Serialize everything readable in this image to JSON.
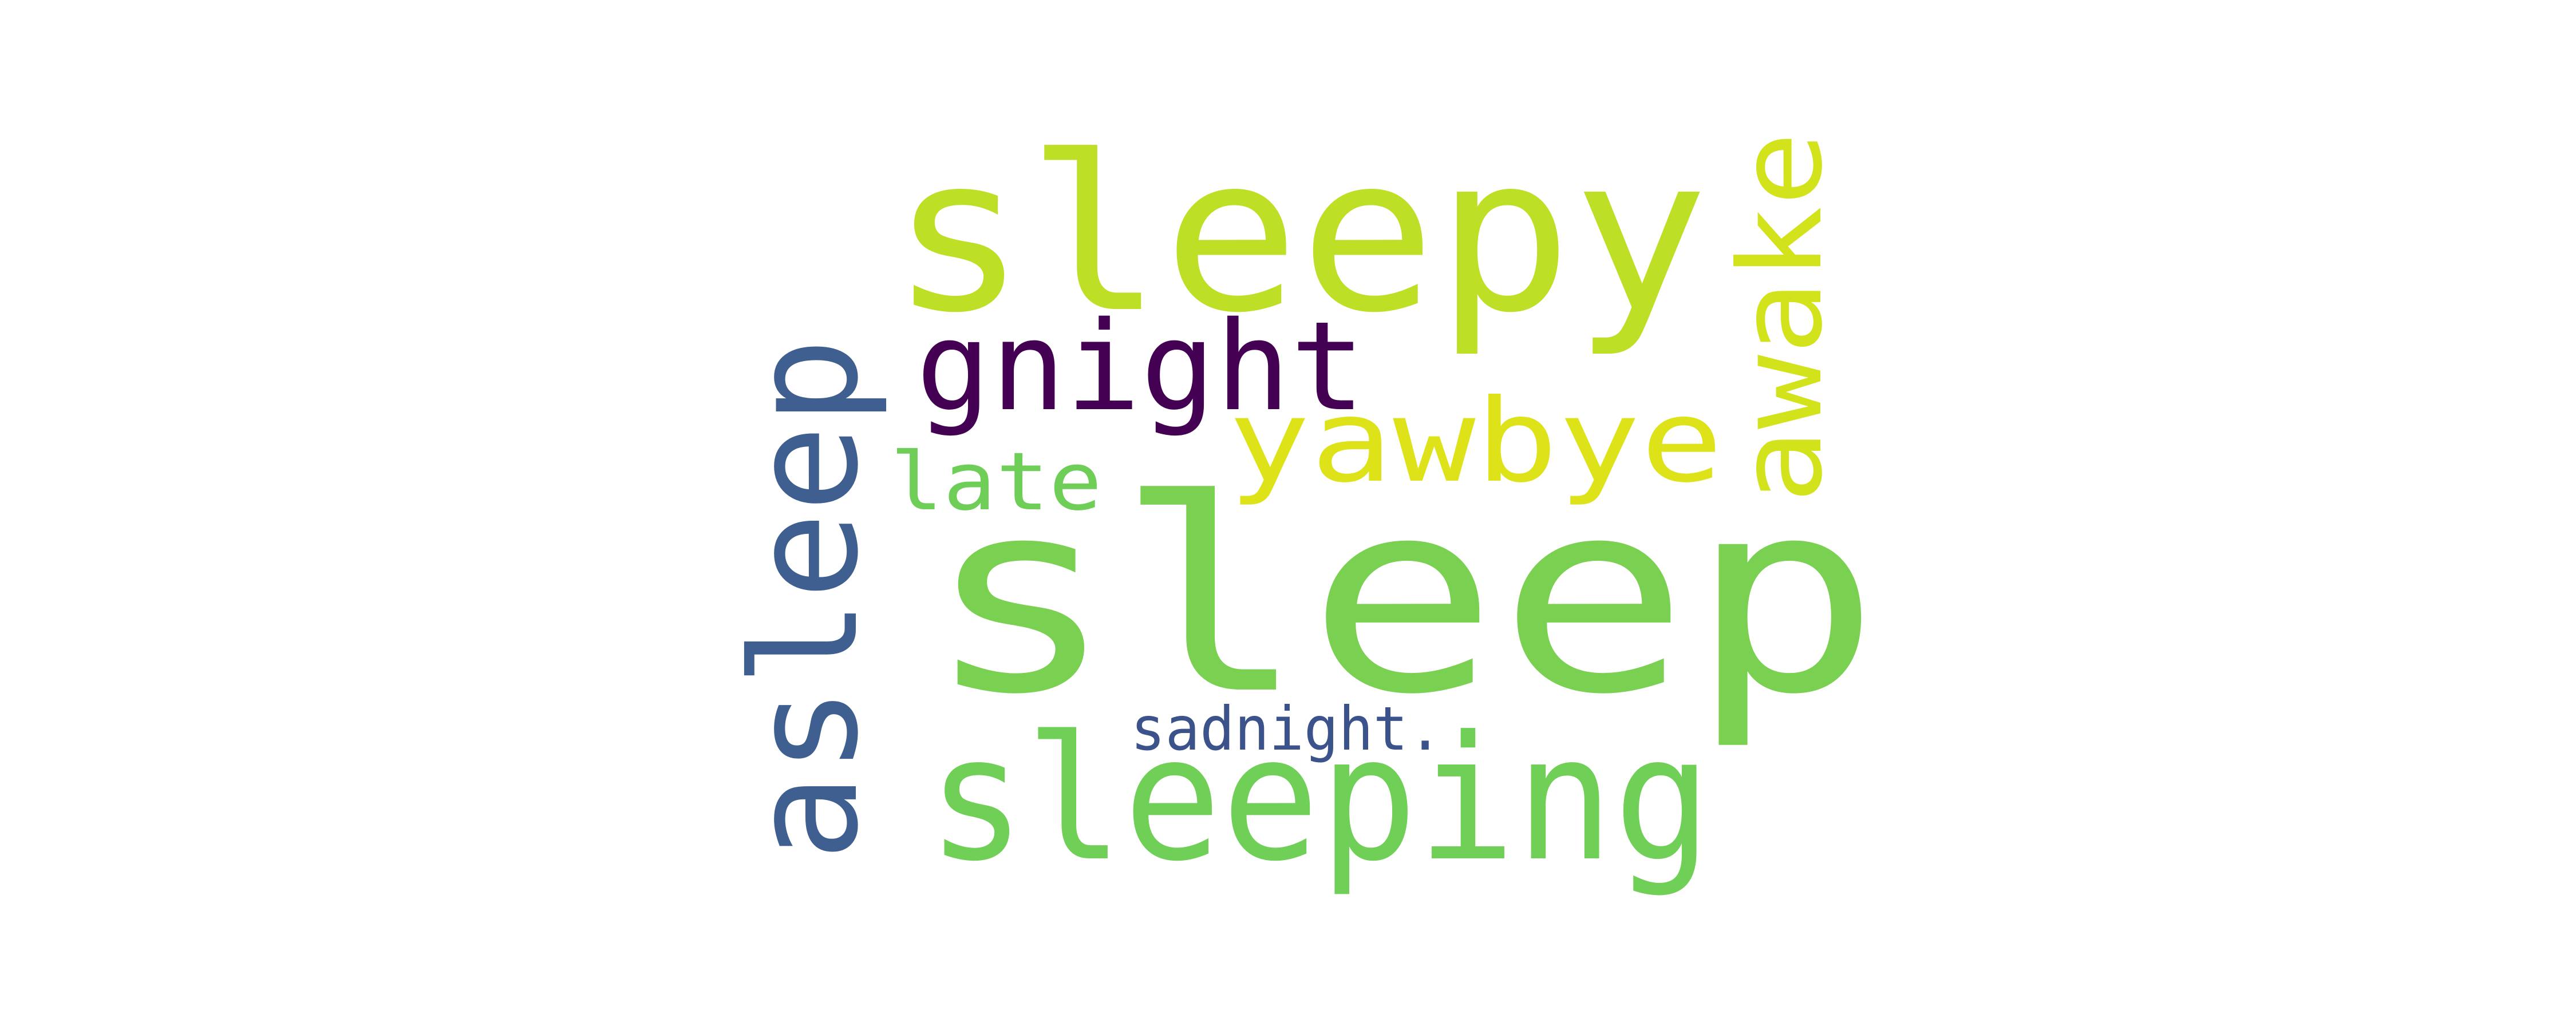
{
  "words": [
    {
      "text": "sleep",
      "color": "#7ad151"
    },
    {
      "text": "sleepy",
      "color": "#bddf26"
    },
    {
      "text": "sleeping",
      "color": "#70cf57"
    },
    {
      "text": "asleep",
      "color": "#3e5f8f"
    },
    {
      "text": "gnight",
      "color": "#440154"
    },
    {
      "text": "yawbye",
      "color": "#dde318"
    },
    {
      "text": "awake",
      "color": "#d2e21b"
    },
    {
      "text": "late",
      "color": "#6ece58"
    },
    {
      "text": "sadnight.",
      "color": "#3b528b"
    }
  ]
}
